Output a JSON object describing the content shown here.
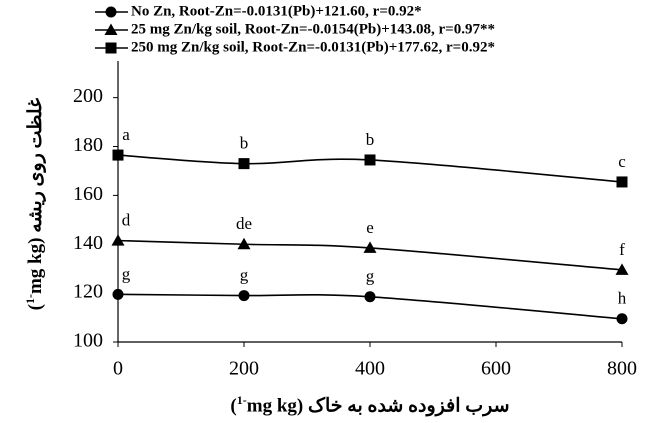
{
  "chart_data": {
    "type": "line",
    "x": [
      0,
      200,
      400,
      800
    ],
    "series": [
      {
        "name": "No Zn, Root-Zn=-0.0131(Pb)+121.60, r=0.92*",
        "color": "#000000",
        "marker": "circle",
        "values": [
          119.5,
          119,
          118.5,
          109.5
        ],
        "point_labels": [
          "g",
          "g",
          "g",
          "h"
        ]
      },
      {
        "name": "25 mg Zn/kg soil, Root-Zn=-0.0154(Pb)+143.08, r=0.97**",
        "color": "#000000",
        "marker": "triangle",
        "values": [
          141.5,
          140,
          138.5,
          129.5
        ],
        "point_labels": [
          "d",
          "de",
          "e",
          "f"
        ]
      },
      {
        "name": "250 mg Zn/kg soil, Root-Zn=-0.0131(Pb)+177.62, r=0.92*",
        "color": "#000000",
        "marker": "square",
        "values": [
          176.5,
          173,
          174.5,
          165.5
        ],
        "point_labels": [
          "a",
          "b",
          "b",
          "c"
        ]
      }
    ],
    "xlim": [
      0,
      800
    ],
    "xticks": [
      0,
      200,
      400,
      600,
      800
    ],
    "ylim": [
      100,
      215
    ],
    "yticks": [
      100,
      120,
      140,
      160,
      180,
      200
    ],
    "x_label": {
      "text": "سرب افزوده شده به خاک (",
      "unit": "mg kg",
      "sup": "-1",
      "close": ")"
    },
    "y_label": {
      "text": "غلظت روی ریشه (",
      "unit": "mg kg",
      "sup": "-1",
      "close": ")"
    }
  }
}
